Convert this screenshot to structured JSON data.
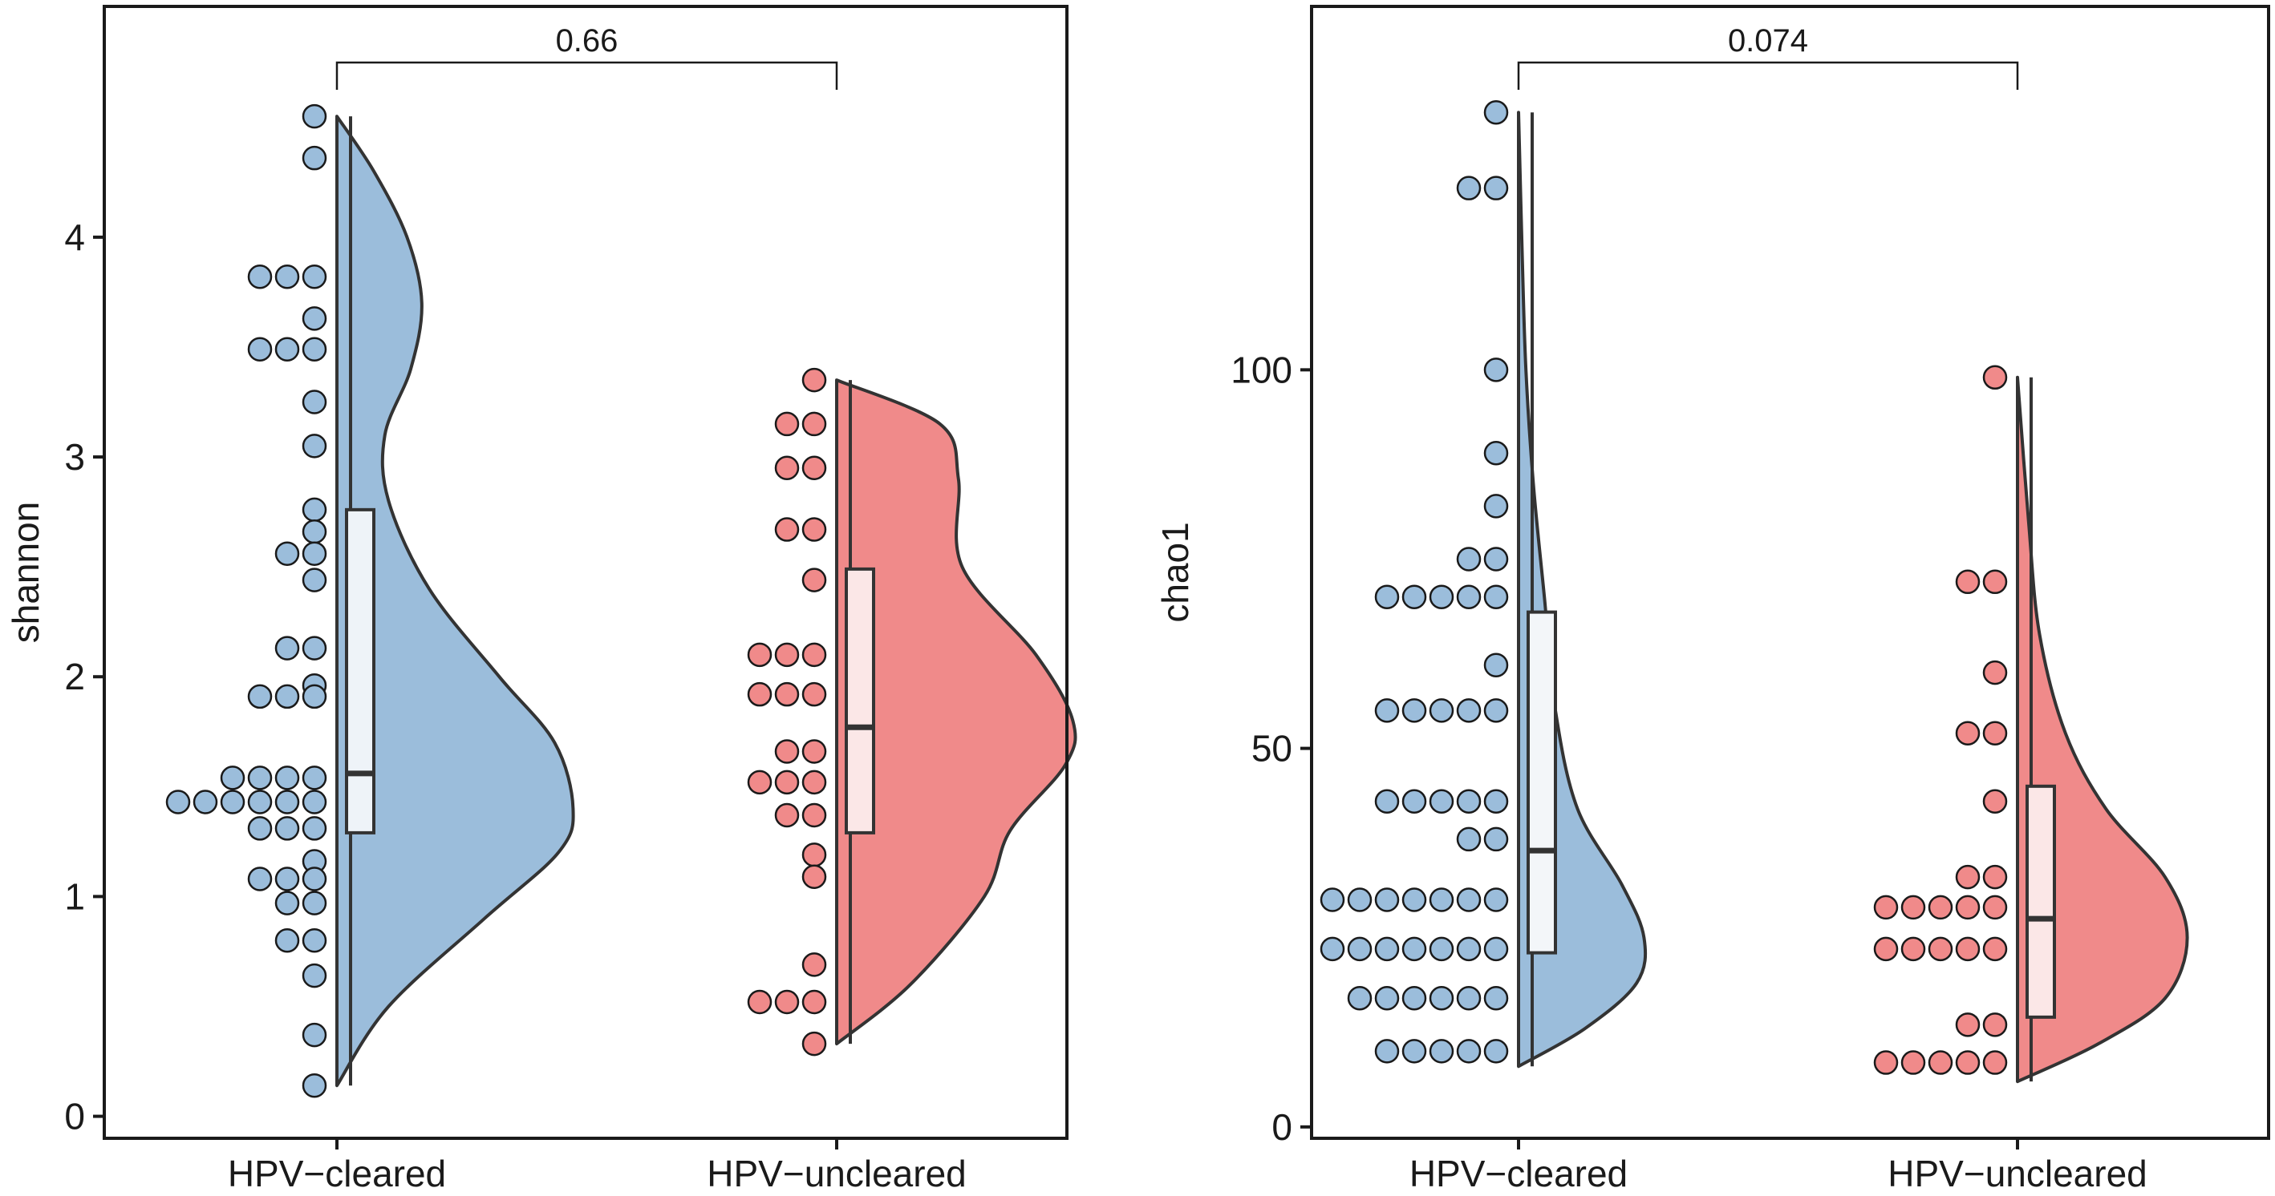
{
  "chart_data": [
    {
      "type": "raincloud",
      "ylabel": "shannon",
      "xlabel": "",
      "ylim": [
        -0.1,
        5.05
      ],
      "yticks": [
        "0",
        "1",
        "2",
        "3",
        "4"
      ],
      "categories": [
        "HPV−cleared",
        "HPV−uncleared"
      ],
      "comparison": {
        "label": "0.66",
        "from": 0,
        "to": 1
      },
      "groups": [
        {
          "name": "HPV−cleared",
          "color": "#9BBDDB",
          "box_fill": "#EEF3F8",
          "box": {
            "min": 0.14,
            "q1": 1.29,
            "median": 1.56,
            "q3": 2.76,
            "max": 4.55
          },
          "points": [
            4.55,
            4.36,
            3.82,
            3.82,
            3.82,
            3.63,
            3.49,
            3.49,
            3.49,
            3.25,
            3.05,
            2.76,
            2.66,
            2.56,
            2.56,
            2.44,
            2.13,
            2.13,
            1.96,
            1.91,
            1.91,
            1.91,
            1.54,
            1.54,
            1.54,
            1.54,
            1.43,
            1.43,
            1.43,
            1.43,
            1.43,
            1.43,
            1.31,
            1.31,
            1.31,
            1.16,
            1.08,
            1.08,
            1.08,
            0.97,
            0.97,
            0.8,
            0.8,
            0.64,
            0.37,
            0.14
          ],
          "density": [
            [
              0.14,
              0.0
            ],
            [
              0.5,
              0.14
            ],
            [
              0.9,
              0.4
            ],
            [
              1.2,
              0.6
            ],
            [
              1.4,
              0.64
            ],
            [
              1.7,
              0.59
            ],
            [
              2.0,
              0.44
            ],
            [
              2.4,
              0.25
            ],
            [
              2.8,
              0.14
            ],
            [
              3.1,
              0.13
            ],
            [
              3.4,
              0.2
            ],
            [
              3.7,
              0.23
            ],
            [
              4.0,
              0.19
            ],
            [
              4.3,
              0.1
            ],
            [
              4.55,
              0.0
            ]
          ]
        },
        {
          "name": "HPV−uncleared",
          "color": "#F08A8A",
          "box_fill": "#FBE7E7",
          "box": {
            "min": 0.33,
            "q1": 1.29,
            "median": 1.77,
            "q3": 2.49,
            "max": 3.35
          },
          "points": [
            3.35,
            3.15,
            3.15,
            2.95,
            2.95,
            2.67,
            2.67,
            2.44,
            2.1,
            2.1,
            2.1,
            1.92,
            1.92,
            1.92,
            1.66,
            1.66,
            1.52,
            1.52,
            1.52,
            1.37,
            1.37,
            1.19,
            1.09,
            0.69,
            0.52,
            0.52,
            0.52,
            0.33
          ],
          "density": [
            [
              0.33,
              0.0
            ],
            [
              0.6,
              0.2
            ],
            [
              1.0,
              0.4
            ],
            [
              1.3,
              0.47
            ],
            [
              1.6,
              0.62
            ],
            [
              1.8,
              0.64
            ],
            [
              2.1,
              0.54
            ],
            [
              2.5,
              0.34
            ],
            [
              2.9,
              0.33
            ],
            [
              3.15,
              0.28
            ],
            [
              3.35,
              0.0
            ]
          ]
        }
      ]
    },
    {
      "type": "raincloud",
      "ylabel": "chao1",
      "xlabel": "",
      "ylim": [
        -1.5,
        148
      ],
      "yticks": [
        "0",
        "50",
        "100"
      ],
      "categories": [
        "HPV−cleared",
        "HPV−uncleared"
      ],
      "comparison": {
        "label": "0.074",
        "from": 0,
        "to": 1
      },
      "groups": [
        {
          "name": "HPV−cleared",
          "color": "#9BBDDB",
          "box_fill": "#F3F6F9",
          "box": {
            "min": 8,
            "q1": 23,
            "median": 36.5,
            "q3": 68,
            "max": 134
          },
          "points": [
            134,
            124,
            124,
            100,
            89,
            82,
            75,
            75,
            70,
            70,
            70,
            70,
            70,
            61,
            55,
            55,
            55,
            55,
            55,
            43,
            43,
            43,
            43,
            43,
            38,
            38,
            30,
            30,
            30,
            30,
            30,
            30,
            30,
            23.5,
            23.5,
            23.5,
            23.5,
            23.5,
            23.5,
            23.5,
            17,
            17,
            17,
            17,
            17,
            17,
            10,
            10,
            10,
            10,
            10
          ],
          "density": [
            [
              8,
              0.0
            ],
            [
              13,
              0.18
            ],
            [
              19,
              0.32
            ],
            [
              25,
              0.34
            ],
            [
              32,
              0.28
            ],
            [
              42,
              0.16
            ],
            [
              55,
              0.1
            ],
            [
              70,
              0.07
            ],
            [
              85,
              0.04
            ],
            [
              100,
              0.02
            ],
            [
              115,
              0.01
            ],
            [
              134,
              0.0
            ]
          ]
        },
        {
          "name": "HPV−uncleared",
          "color": "#F08A8A",
          "box_fill": "#FBE7E7",
          "box": {
            "min": 6,
            "q1": 14.5,
            "median": 27.5,
            "q3": 45,
            "max": 99
          },
          "points": [
            99,
            72,
            72,
            60,
            52,
            52,
            43,
            33,
            33,
            29,
            29,
            29,
            29,
            29,
            23.5,
            23.5,
            23.5,
            23.5,
            23.5,
            13.5,
            13.5,
            8.5,
            8.5,
            8.5,
            8.5,
            8.5
          ],
          "density": [
            [
              6,
              0.0
            ],
            [
              11,
              0.22
            ],
            [
              17,
              0.4
            ],
            [
              25,
              0.46
            ],
            [
              33,
              0.4
            ],
            [
              42,
              0.24
            ],
            [
              52,
              0.13
            ],
            [
              65,
              0.06
            ],
            [
              80,
              0.03
            ],
            [
              99,
              0.0
            ]
          ]
        }
      ]
    }
  ]
}
